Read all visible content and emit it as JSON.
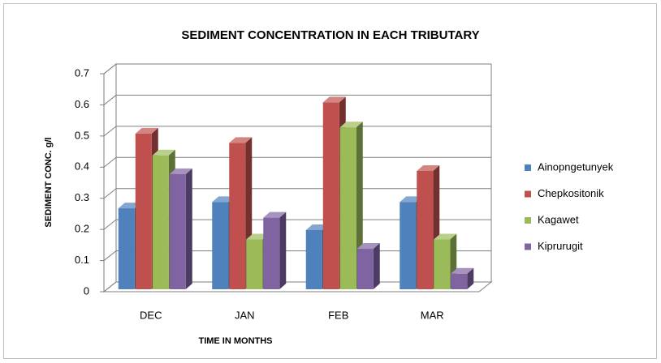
{
  "chart_data": {
    "type": "bar3d",
    "title": "SEDIMENT CONCENTRATION IN EACH TRIBUTARY",
    "xlabel": "TIME IN MONTHS",
    "ylabel": "SEDIMENT CONC. g/l",
    "categories": [
      "DEC",
      "JAN",
      "FEB",
      "MAR"
    ],
    "series": [
      {
        "name": "Ainopngetunyek",
        "color": "#4f81bd",
        "values": [
          0.26,
          0.28,
          0.19,
          0.28
        ]
      },
      {
        "name": "Chepkositonik",
        "color": "#c0504d",
        "values": [
          0.5,
          0.47,
          0.6,
          0.38
        ]
      },
      {
        "name": "Kagawet",
        "color": "#9bbb59",
        "values": [
          0.43,
          0.16,
          0.52,
          0.16
        ]
      },
      {
        "name": "Kiprurugit",
        "color": "#8064a2",
        "values": [
          0.37,
          0.23,
          0.13,
          0.05
        ]
      }
    ],
    "ylim": [
      0,
      0.7
    ],
    "yticks": [
      0,
      0.1,
      0.2,
      0.3,
      0.4,
      0.5,
      0.6,
      0.7
    ],
    "grid": true,
    "legend": "right"
  }
}
